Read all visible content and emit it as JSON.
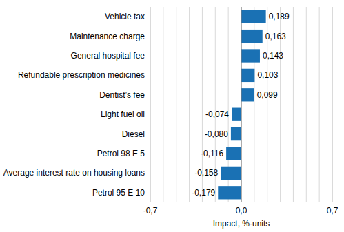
{
  "chart_data": {
    "type": "bar",
    "orientation": "horizontal",
    "categories": [
      "Vehicle tax",
      "Maintenance charge",
      "General hospital fee",
      "Refundable prescription medicines",
      "Dentist’s fee",
      "Light fuel oil",
      "Diesel",
      "Petrol 98 E 5",
      "Average interest rate on housing loans",
      "Petrol 95 E 10"
    ],
    "values": [
      0.189,
      0.163,
      0.143,
      0.103,
      0.099,
      -0.074,
      -0.08,
      -0.116,
      -0.158,
      -0.179
    ],
    "value_labels": [
      "0,189",
      "0,163",
      "0,143",
      "0,103",
      "0,099",
      "-0,074",
      "-0,080",
      "-0,116",
      "-0,158",
      "-0,179"
    ],
    "data_labels": true,
    "color": "#1a71b4",
    "xlim": [
      -0.7,
      0.7
    ],
    "xticks": [
      {
        "value": -0.7,
        "label": "-0,7"
      },
      {
        "value": 0,
        "label": "0,0"
      },
      {
        "value": 0.7,
        "label": "0,7"
      }
    ],
    "x_label": "Impact, %-units",
    "grid": true
  }
}
